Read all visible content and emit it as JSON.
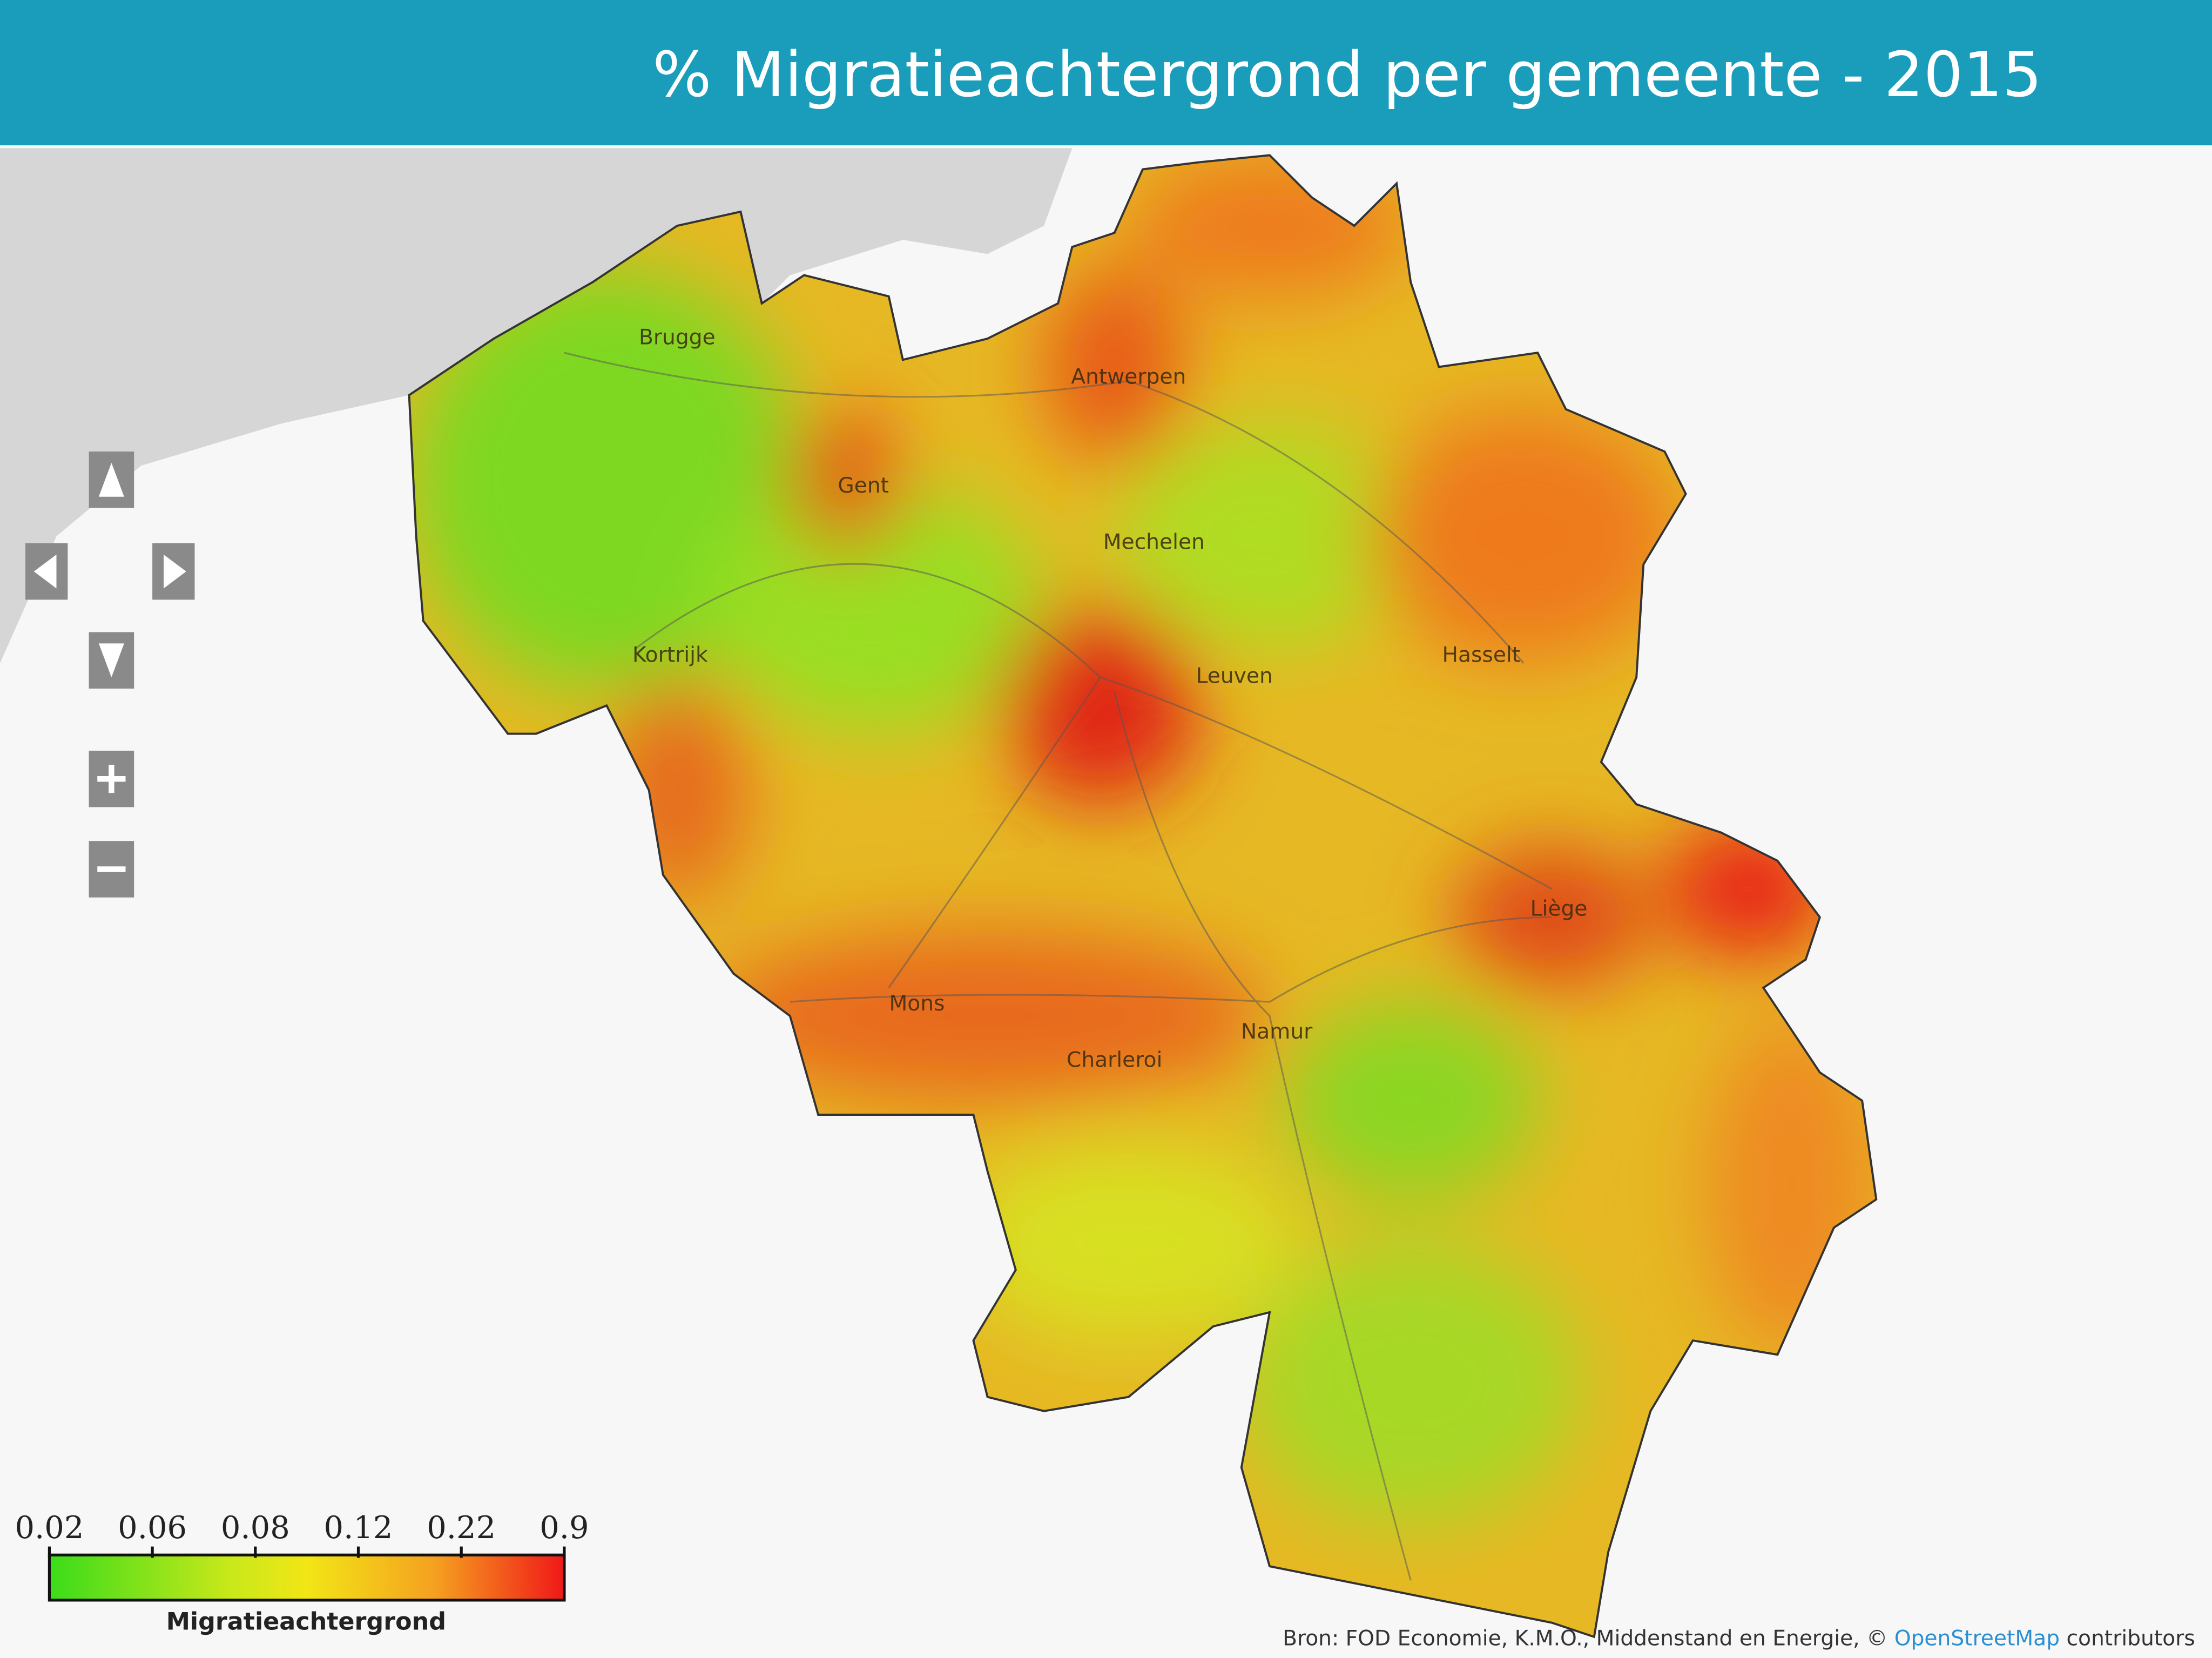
{
  "header": {
    "title": "% Migratieachtergrond per gemeente - 2015"
  },
  "map": {
    "cities": [
      "Brugge",
      "Antwerpen",
      "Gent",
      "Mechelen",
      "Kortrijk",
      "Leuven",
      "Hasselt",
      "Liège",
      "Mons",
      "Charleroi",
      "Namur"
    ]
  },
  "legend": {
    "ticks": [
      0.02,
      0.06,
      0.08,
      0.12,
      0.22,
      0.9
    ],
    "title": "Migratieachtergrond"
  },
  "attribution": {
    "text": "Bron: FOD Economie, K.M.O., Middenstand en Energie, ©",
    "link": "OpenStreetMap",
    "suffix": "contributors"
  }
}
